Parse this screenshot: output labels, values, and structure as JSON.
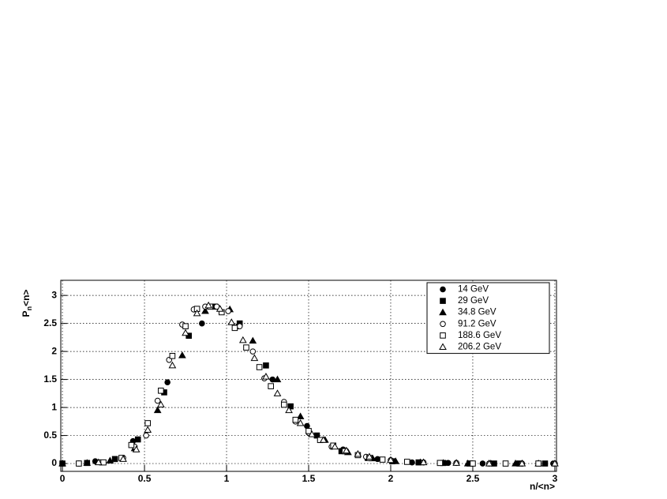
{
  "chart_data": {
    "type": "scatter",
    "x_label": "n/<n>",
    "y_label": {
      "main": "P",
      "sub": "n",
      "tail": "<n>"
    },
    "xlim": [
      -0.01,
      3.01
    ],
    "ylim": [
      -0.14,
      3.27
    ],
    "xticks": [
      0,
      0.5,
      1,
      1.5,
      2,
      2.5,
      3
    ],
    "yticks": [
      0,
      0.5,
      1,
      1.5,
      2,
      2.5,
      3
    ],
    "grid": true,
    "legend": "top-right",
    "series": [
      {
        "name": "14 GeV",
        "color": "#000000",
        "marker": "circle",
        "filled": true,
        "x": [
          0,
          0.2,
          0.43,
          0.64,
          0.85,
          1.07,
          1.28,
          1.49,
          1.71,
          1.92,
          2.13,
          2.35,
          2.56,
          2.77,
          2.99
        ],
        "values": [
          0,
          0.04,
          0.4,
          1.45,
          2.5,
          2.45,
          1.5,
          0.67,
          0.25,
          0.08,
          0.02,
          0.01,
          0,
          0,
          0
        ]
      },
      {
        "name": "29 GeV",
        "color": "#000000",
        "marker": "square",
        "filled": true,
        "x": [
          0,
          0.15,
          0.32,
          0.46,
          0.62,
          0.77,
          0.93,
          1.08,
          1.24,
          1.39,
          1.55,
          1.7,
          1.86,
          2.01,
          2.17,
          2.32,
          2.48,
          2.63,
          2.79,
          2.94
        ],
        "values": [
          0,
          0.01,
          0.08,
          0.43,
          1.27,
          2.28,
          2.8,
          2.5,
          1.75,
          1.02,
          0.5,
          0.22,
          0.1,
          0.04,
          0.02,
          0.01,
          0,
          0,
          0,
          0
        ]
      },
      {
        "name": "34.8 GeV",
        "color": "#000000",
        "marker": "triangle",
        "filled": true,
        "x": [
          0,
          0.15,
          0.29,
          0.44,
          0.58,
          0.73,
          0.87,
          1.02,
          1.16,
          1.31,
          1.45,
          1.6,
          1.74,
          1.89,
          2.03,
          2.18,
          2.32,
          2.47,
          2.61,
          2.76,
          2.9
        ],
        "values": [
          0,
          0.01,
          0.05,
          0.27,
          0.95,
          1.93,
          2.72,
          2.75,
          2.19,
          1.5,
          0.84,
          0.42,
          0.2,
          0.09,
          0.04,
          0.02,
          0.01,
          0,
          0,
          0,
          0
        ]
      },
      {
        "name": "91.2 GeV",
        "color": "#000000",
        "marker": "circle",
        "filled": false,
        "x": [
          0.1,
          0.23,
          0.37,
          0.44,
          0.51,
          0.58,
          0.65,
          0.73,
          0.8,
          0.87,
          0.94,
          1.01,
          1.08,
          1.16,
          1.23,
          1.35,
          1.42,
          1.5,
          1.57,
          1.64,
          1.72,
          1.85,
          2.0,
          2.2,
          2.4,
          2.6,
          2.8,
          3.0
        ],
        "values": [
          0,
          0.02,
          0.1,
          0.3,
          0.5,
          1.12,
          1.85,
          2.48,
          2.75,
          2.8,
          2.8,
          2.72,
          2.45,
          2.0,
          1.52,
          1.1,
          0.75,
          0.55,
          0.42,
          0.3,
          0.22,
          0.12,
          0.06,
          0.02,
          0.01,
          0,
          0,
          0
        ]
      },
      {
        "name": "188.6 GeV",
        "color": "#000000",
        "marker": "square",
        "filled": false,
        "x": [
          0.1,
          0.25,
          0.36,
          0.42,
          0.52,
          0.6,
          0.67,
          0.75,
          0.82,
          0.9,
          0.97,
          1.05,
          1.12,
          1.2,
          1.27,
          1.35,
          1.42,
          1.5,
          1.57,
          1.65,
          1.72,
          1.8,
          1.87,
          1.95,
          2.1,
          2.3,
          2.5,
          2.7,
          2.9
        ],
        "values": [
          0,
          0.02,
          0.1,
          0.33,
          0.72,
          1.3,
          1.92,
          2.45,
          2.76,
          2.8,
          2.7,
          2.42,
          2.07,
          1.72,
          1.38,
          1.05,
          0.78,
          0.58,
          0.42,
          0.32,
          0.22,
          0.15,
          0.1,
          0.07,
          0.03,
          0.01,
          0,
          0,
          0
        ]
      },
      {
        "name": "206.2 GeV",
        "color": "#000000",
        "marker": "triangle",
        "filled": false,
        "x": [
          0.22,
          0.37,
          0.45,
          0.52,
          0.6,
          0.67,
          0.75,
          0.82,
          0.89,
          0.96,
          1.03,
          1.1,
          1.17,
          1.24,
          1.31,
          1.38,
          1.45,
          1.52,
          1.59,
          1.66,
          1.73,
          1.8,
          1.87,
          2.0,
          2.2,
          2.4,
          2.6,
          2.8,
          3.0
        ],
        "values": [
          0.02,
          0.08,
          0.25,
          0.6,
          1.05,
          1.75,
          2.33,
          2.68,
          2.82,
          2.76,
          2.52,
          2.2,
          1.88,
          1.55,
          1.25,
          0.95,
          0.72,
          0.52,
          0.42,
          0.3,
          0.23,
          0.17,
          0.12,
          0.06,
          0.02,
          0.01,
          0,
          0,
          0
        ]
      }
    ]
  }
}
